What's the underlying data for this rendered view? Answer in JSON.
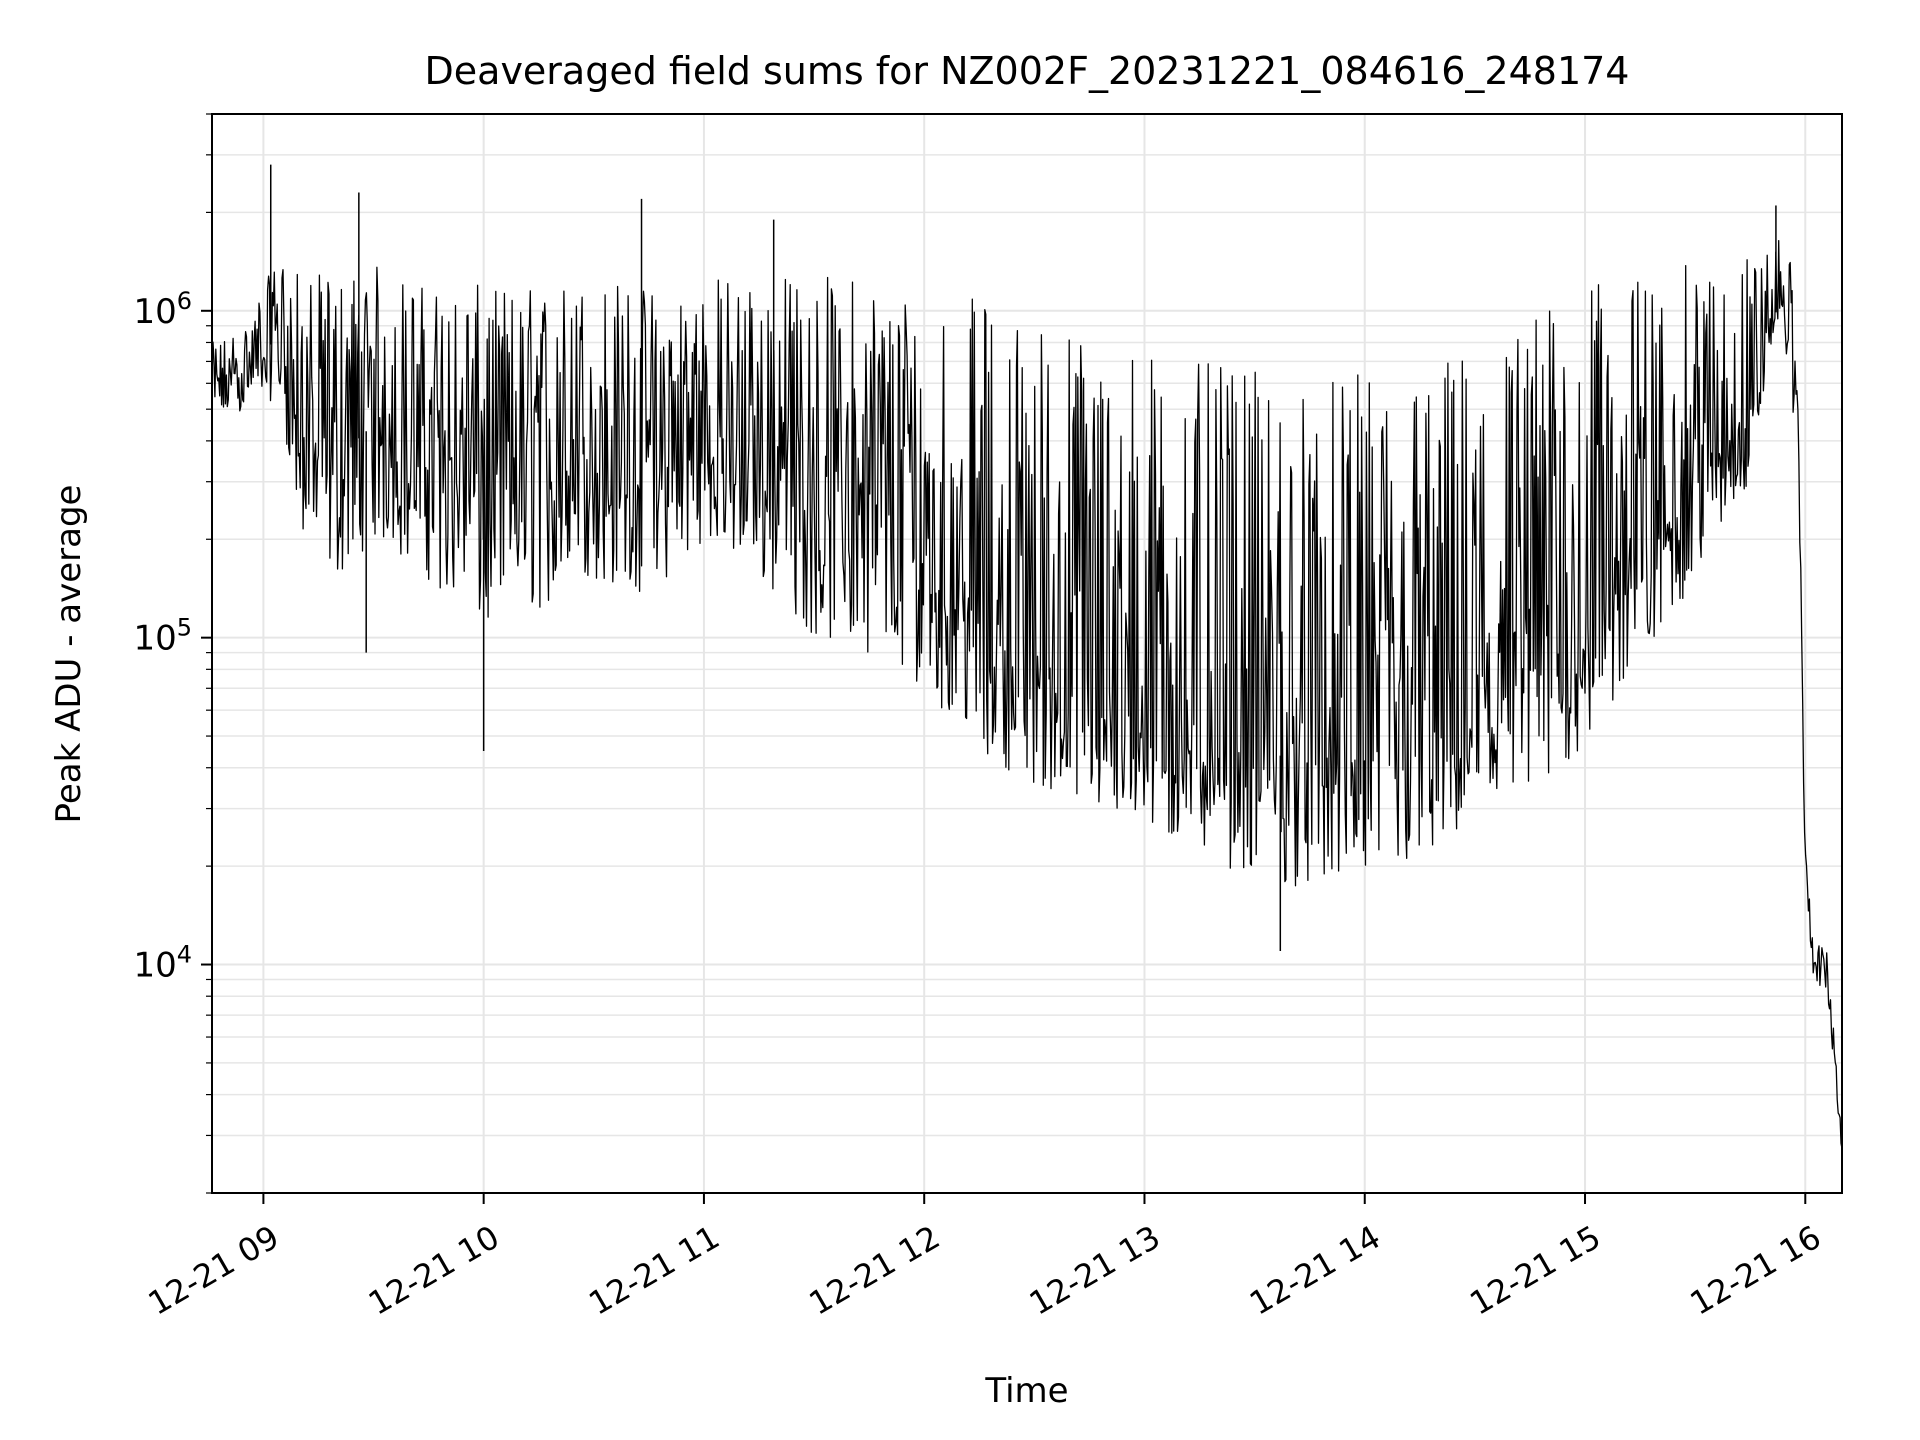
{
  "chart_data": {
    "type": "line",
    "title": "Deaveraged field sums for NZ002F_20231221_084616_248174",
    "xlabel": "Time",
    "ylabel": "Peak ADU - average",
    "yscale": "log",
    "ylim": [
      2000,
      4000000
    ],
    "xlim": [
      "2023-12-21 08:46",
      "2023-12-21 16:10"
    ],
    "grid": true,
    "line_color": "#000000",
    "x_ticks": [
      {
        "label": "12-21 09",
        "time": "2023-12-21 09:00"
      },
      {
        "label": "12-21 10",
        "time": "2023-12-21 10:00"
      },
      {
        "label": "12-21 11",
        "time": "2023-12-21 11:00"
      },
      {
        "label": "12-21 12",
        "time": "2023-12-21 12:00"
      },
      {
        "label": "12-21 13",
        "time": "2023-12-21 13:00"
      },
      {
        "label": "12-21 14",
        "time": "2023-12-21 14:00"
      },
      {
        "label": "12-21 15",
        "time": "2023-12-21 15:00"
      },
      {
        "label": "12-21 16",
        "time": "2023-12-21 16:00"
      }
    ],
    "y_ticks": [
      {
        "value": 10000,
        "base": "10",
        "exp": "4"
      },
      {
        "value": 100000,
        "base": "10",
        "exp": "5"
      },
      {
        "value": 1000000,
        "base": "10",
        "exp": "6"
      }
    ],
    "series": [
      {
        "x": [
          "2023-12-21 08:46",
          "2023-12-21 08:50",
          "2023-12-21 08:55",
          "2023-12-21 09:00",
          "2023-12-21 09:05",
          "2023-12-21 09:10",
          "2023-12-21 09:20",
          "2023-12-21 09:30",
          "2023-12-21 09:45",
          "2023-12-21 10:00",
          "2023-12-21 10:15",
          "2023-12-21 10:30",
          "2023-12-21 10:45",
          "2023-12-21 11:00",
          "2023-12-21 11:15",
          "2023-12-21 11:30",
          "2023-12-21 11:45",
          "2023-12-21 12:00",
          "2023-12-21 12:15",
          "2023-12-21 12:30",
          "2023-12-21 12:45",
          "2023-12-21 13:00",
          "2023-12-21 13:15",
          "2023-12-21 13:30",
          "2023-12-21 13:45",
          "2023-12-21 14:00",
          "2023-12-21 14:15",
          "2023-12-21 14:30",
          "2023-12-21 14:45",
          "2023-12-21 15:00",
          "2023-12-21 15:15",
          "2023-12-21 15:30",
          "2023-12-21 15:45",
          "2023-12-21 15:50",
          "2023-12-21 15:53",
          "2023-12-21 15:56",
          "2023-12-21 15:58",
          "2023-12-21 16:00",
          "2023-12-21 16:02",
          "2023-12-21 16:04",
          "2023-12-21 16:06",
          "2023-12-21 16:08",
          "2023-12-21 16:10"
        ],
        "y": [
          550000,
          600000,
          650000,
          750000,
          850000,
          400000,
          350000,
          450000,
          380000,
          300000,
          350000,
          350000,
          320000,
          380000,
          350000,
          300000,
          260000,
          180000,
          110000,
          80000,
          65000,
          55000,
          50000,
          45000,
          42000,
          43000,
          50000,
          60000,
          80000,
          120000,
          180000,
          300000,
          500000,
          800000,
          1100000,
          900000,
          500000,
          20000,
          11000,
          10000,
          9500,
          5000,
          3000
        ],
        "lower": [
          450000,
          470000,
          500000,
          550000,
          500000,
          200000,
          150000,
          200000,
          150000,
          100000,
          120000,
          150000,
          130000,
          200000,
          150000,
          100000,
          90000,
          70000,
          45000,
          35000,
          30000,
          25000,
          22000,
          18000,
          17000,
          18000,
          20000,
          25000,
          30000,
          45000,
          80000,
          150000,
          300000,
          700000,
          1000000,
          600000,
          200000,
          14000,
          9000,
          8500,
          8000,
          4500,
          2800
        ],
        "upper": [
          800000,
          850000,
          900000,
          1200000,
          1500000,
          1300000,
          1300000,
          1400000,
          1200000,
          1200000,
          1200000,
          1300000,
          1200000,
          1300000,
          1300000,
          1300000,
          1300000,
          1200000,
          1100000,
          1000000,
          900000,
          800000,
          700000,
          650000,
          600000,
          650000,
          700000,
          800000,
          1000000,
          1200000,
          1300000,
          1400000,
          1500000,
          1600000,
          1700000,
          1400000,
          800000,
          17000,
          13000,
          12000,
          11000,
          6000,
          3200
        ],
        "spikes": [
          {
            "x": "2023-12-21 09:02",
            "y": 2800000
          },
          {
            "x": "2023-12-21 09:26",
            "y": 2300000
          },
          {
            "x": "2023-12-21 10:43",
            "y": 2200000
          },
          {
            "x": "2023-12-21 11:19",
            "y": 1900000
          },
          {
            "x": "2023-12-21 15:52",
            "y": 2100000
          },
          {
            "x": "2023-12-21 10:00",
            "y": 45000
          },
          {
            "x": "2023-12-21 13:37",
            "y": 11000
          },
          {
            "x": "2023-12-21 09:28",
            "y": 90000
          }
        ]
      }
    ]
  }
}
